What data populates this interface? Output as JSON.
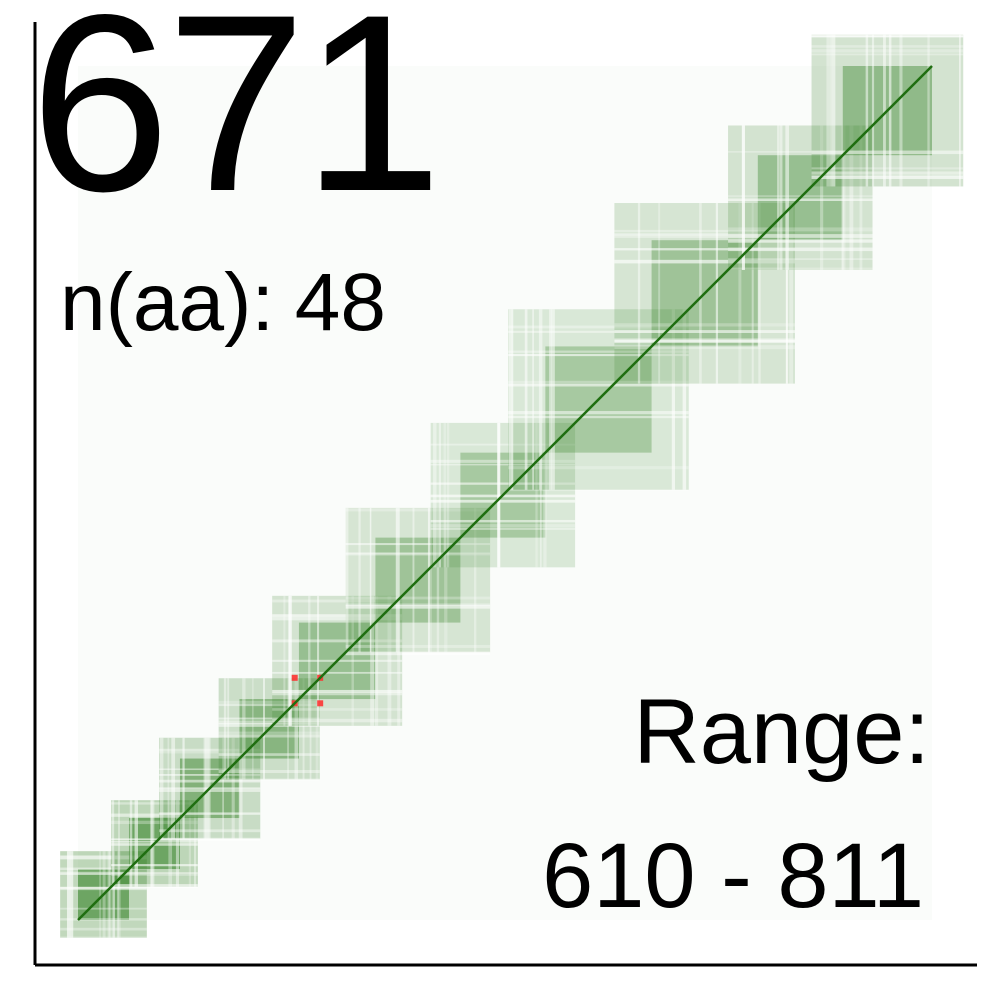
{
  "chart_data": {
    "type": "heatmap",
    "title": "671",
    "subtitle_label": "n(aa):",
    "subtitle_value": "48",
    "range_label": "Range:",
    "range_start": "610",
    "range_end": "811",
    "domain": [
      610,
      811
    ],
    "colors": {
      "contact": "#2e7d1f",
      "diagonal": "#1f6e10",
      "highlight": "#ff2a2a",
      "background": "#ffffff",
      "axis": "#000000"
    },
    "blocks": [
      {
        "start": 610,
        "end": 622,
        "density": 0.85
      },
      {
        "start": 622,
        "end": 634,
        "density": 0.85
      },
      {
        "start": 634,
        "end": 648,
        "density": 0.7
      },
      {
        "start": 648,
        "end": 662,
        "density": 0.65
      },
      {
        "start": 662,
        "end": 680,
        "density": 0.55
      },
      {
        "start": 680,
        "end": 700,
        "density": 0.5
      },
      {
        "start": 700,
        "end": 720,
        "density": 0.45
      },
      {
        "start": 720,
        "end": 745,
        "density": 0.45
      },
      {
        "start": 745,
        "end": 770,
        "density": 0.5
      },
      {
        "start": 770,
        "end": 790,
        "density": 0.55
      },
      {
        "start": 790,
        "end": 811,
        "density": 0.6
      }
    ],
    "highlights": [
      {
        "x": 661,
        "y": 661
      },
      {
        "x": 667,
        "y": 667
      },
      {
        "x": 661,
        "y": 667
      },
      {
        "x": 667,
        "y": 661
      }
    ]
  }
}
